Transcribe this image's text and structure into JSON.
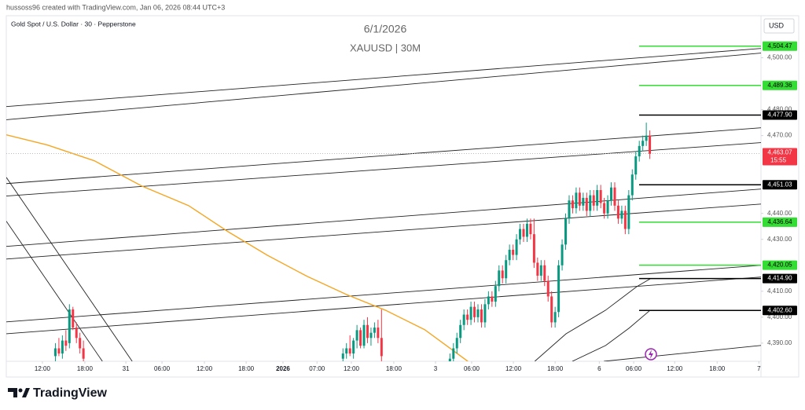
{
  "header": {
    "credit": "hussoss96 created with TradingView.com, Jan 06, 2026 08:44 UTC+3",
    "footer": "TradingView"
  },
  "chart_data": {
    "type": "candlestick",
    "symbol": "Gold Spot / U.S. Dollar · 30 · Pepperstone",
    "title": "6/1/2026",
    "subtitle": "XAUUSD | 30M",
    "currency": "USD",
    "xlim": [
      0,
      215.2
    ],
    "ylim": [
      4383,
      4515
    ],
    "xticks": [
      {
        "value": 10.3,
        "label": "12:00"
      },
      {
        "value": 22.4,
        "label": "18:00"
      },
      {
        "value": 34.1,
        "label": "31"
      },
      {
        "value": 44.4,
        "label": "06:00"
      },
      {
        "value": 56.5,
        "label": "12:00"
      },
      {
        "value": 68.4,
        "label": "18:00"
      },
      {
        "value": 78.9,
        "label": "2026"
      },
      {
        "value": 88.6,
        "label": "07:00"
      },
      {
        "value": 98.4,
        "label": "12:00"
      },
      {
        "value": 110.5,
        "label": "18:00"
      },
      {
        "value": 122.4,
        "label": "3"
      },
      {
        "value": 132.7,
        "label": "06:00"
      },
      {
        "value": 144.6,
        "label": "12:00"
      },
      {
        "value": 156.5,
        "label": "18:00"
      },
      {
        "value": 169.1,
        "label": "6"
      },
      {
        "value": 178.9,
        "label": "06:00"
      },
      {
        "value": 190.6,
        "label": "12:00"
      },
      {
        "value": 202.7,
        "label": "18:00"
      },
      {
        "value": 214.6,
        "label": "7"
      }
    ],
    "yticks": [
      {
        "value": 4390,
        "label": "4,390.00"
      },
      {
        "value": 4400,
        "label": "4,400.00"
      },
      {
        "value": 4410,
        "label": "4,410.00"
      },
      {
        "value": 4430,
        "label": "4,430.00"
      },
      {
        "value": 4440,
        "label": "4,440.00"
      },
      {
        "value": 4470,
        "label": "4,470.00"
      },
      {
        "value": 4480,
        "label": "4,480.00"
      },
      {
        "value": 4500,
        "label": "4,500.00"
      }
    ],
    "up_color": "#089981",
    "down_color": "#f23645",
    "candles": {
      "x": [
        14,
        15,
        16,
        17,
        18,
        19,
        20,
        21,
        22,
        96,
        97,
        98,
        99,
        100,
        101,
        102,
        103,
        104,
        105,
        106,
        107,
        126.5,
        127.5,
        128.5,
        129.5,
        130.5,
        131.5,
        132.5,
        133.5,
        134.5,
        135.5,
        136.5,
        137.5,
        138.5,
        139.5,
        140.5,
        141.5,
        142.5,
        143.5,
        144.5,
        145.5,
        146.5,
        147.5,
        148.5,
        149.5,
        150.5,
        151.5,
        152.5,
        153.5,
        154.5,
        155.5,
        156.5,
        157.5,
        158.5,
        159.5,
        160.5,
        161.5,
        162.5,
        163.5,
        164.5,
        165.5,
        166.5,
        167.5,
        168.5,
        169.5,
        170.5,
        171.5,
        172.5,
        173.5,
        174.5,
        175.5,
        176.5,
        177.5,
        178.5,
        179.5,
        180.5,
        181.5,
        182.5,
        183.5
      ],
      "open": [
        4385,
        4388,
        4386,
        4391,
        4390,
        4403,
        4396,
        4392,
        4388,
        4384,
        4386,
        4388,
        4386,
        4391,
        4395,
        4389,
        4397,
        4392,
        4394,
        4396,
        4392,
        4383,
        4384,
        4388,
        4392,
        4397,
        4401,
        4399,
        4404,
        4400,
        4403,
        4398,
        4405,
        4408,
        4406,
        4412,
        4418,
        4415,
        4422,
        4426,
        4424,
        4430,
        4434,
        4431,
        4436,
        4432,
        4421,
        4416,
        4420,
        4414,
        4408,
        4398,
        4402,
        4420,
        4428,
        4438,
        4445,
        4442,
        4448,
        4443,
        4446,
        4441,
        4447,
        4443,
        4449,
        4444,
        4440,
        4445,
        4450,
        4443,
        4438,
        4441,
        4434,
        4447,
        4455,
        4462,
        4466,
        4468,
        4470
      ],
      "high": [
        4390,
        4392,
        4393,
        4395,
        4405,
        4404,
        4398,
        4394,
        4391,
        4388,
        4390,
        4393,
        4392,
        4397,
        4396,
        4399,
        4400,
        4396,
        4398,
        4399,
        4403,
        4386,
        4390,
        4394,
        4399,
        4403,
        4403,
        4406,
        4406,
        4405,
        4405,
        4407,
        4410,
        4410,
        4414,
        4420,
        4420,
        4424,
        4428,
        4428,
        4432,
        4436,
        4436,
        4438,
        4438,
        4438,
        4423,
        4422,
        4422,
        4416,
        4410,
        4404,
        4422,
        4430,
        4440,
        4447,
        4447,
        4450,
        4450,
        4448,
        4448,
        4449,
        4449,
        4451,
        4451,
        4446,
        4447,
        4452,
        4452,
        4445,
        4443,
        4443,
        4449,
        4457,
        4464,
        4468,
        4470,
        4475,
        4472
      ],
      "low": [
        4383,
        4385,
        4384,
        4387,
        4388,
        4395,
        4390,
        4386,
        4383,
        4383,
        4384,
        4385,
        4384,
        4388,
        4388,
        4388,
        4390,
        4389,
        4392,
        4390,
        4383,
        4381,
        4382,
        4386,
        4390,
        4395,
        4397,
        4397,
        4398,
        4398,
        4396,
        4396,
        4403,
        4404,
        4404,
        4410,
        4413,
        4413,
        4420,
        4422,
        4422,
        4428,
        4429,
        4429,
        4430,
        4419,
        4414,
        4414,
        4412,
        4406,
        4396,
        4396,
        4400,
        4418,
        4426,
        4436,
        4440,
        4440,
        4441,
        4441,
        4439,
        4439,
        4441,
        4441,
        4442,
        4438,
        4438,
        4443,
        4441,
        4436,
        4436,
        4432,
        4432,
        4445,
        4453,
        4460,
        4464,
        4466,
        4461
      ],
      "close": [
        4388,
        4386,
        4391,
        4389,
        4403,
        4396,
        4392,
        4388,
        4384,
        4386,
        4388,
        4386,
        4391,
        4395,
        4389,
        4397,
        4392,
        4394,
        4396,
        4392,
        4385,
        4384,
        4388,
        4392,
        4397,
        4401,
        4399,
        4404,
        4400,
        4403,
        4398,
        4405,
        4408,
        4406,
        4412,
        4418,
        4415,
        4422,
        4426,
        4424,
        4430,
        4434,
        4431,
        4436,
        4432,
        4421,
        4416,
        4420,
        4414,
        4408,
        4398,
        4402,
        4420,
        4428,
        4438,
        4445,
        4442,
        4448,
        4443,
        4446,
        4441,
        4447,
        4443,
        4449,
        4444,
        4440,
        4445,
        4450,
        4443,
        4438,
        4441,
        4434,
        4447,
        4455,
        4462,
        4466,
        4468,
        4470,
        4463
      ]
    },
    "moving_average": {
      "color": "#f5a623",
      "x": [
        0,
        11.7,
        25.1,
        38.6,
        52.0,
        63.2,
        74.4,
        85.7,
        96.9,
        108.1,
        119.3,
        131.6
      ],
      "values": [
        4470.3,
        4466.4,
        4460.3,
        4450.6,
        4443.0,
        4433.0,
        4423.9,
        4415.8,
        4408.8,
        4402.7,
        4395.2,
        4383.0
      ]
    },
    "trendlines": [
      {
        "x": [
          0,
          215.2
        ],
        "values": [
          4481.2,
          4503.6
        ]
      },
      {
        "x": [
          0,
          215.2
        ],
        "values": [
          4476.1,
          4501.8
        ]
      },
      {
        "x": [
          0,
          215.2
        ],
        "values": [
          4451.5,
          4473.0
        ]
      },
      {
        "x": [
          0,
          215.2
        ],
        "values": [
          4446.7,
          4467.3
        ]
      },
      {
        "x": [
          0,
          215.2
        ],
        "values": [
          4427.3,
          4449.4
        ]
      },
      {
        "x": [
          0,
          215.2
        ],
        "values": [
          4422.4,
          4443.6
        ]
      },
      {
        "x": [
          0,
          215.2
        ],
        "values": [
          4398.2,
          4420.0
        ]
      },
      {
        "x": [
          0,
          215.2
        ],
        "values": [
          4393.6,
          4415.5
        ]
      },
      {
        "x": [
          170.4,
          215.2
        ],
        "values": [
          4383.0,
          4389.1
        ]
      },
      {
        "x": [
          0,
          35.9
        ],
        "values": [
          4453.9,
          4383.0
        ]
      },
      {
        "x": [
          0,
          27.4
        ],
        "values": [
          4437.0,
          4383.0
        ]
      },
      {
        "x": [
          150.7,
          159.6,
          170.9,
          179.8,
          183.6
        ],
        "values": [
          4383.0,
          4393.6,
          4402.7,
          4411.8,
          4414.8
        ]
      },
      {
        "x": [
          161.4,
          170.9,
          177.6,
          183.6
        ],
        "values": [
          4383.0,
          4389.1,
          4395.8,
          4402.7
        ]
      }
    ],
    "levels": [
      {
        "value": 4504.47,
        "label": "4,504.47",
        "color": "#33dd33"
      },
      {
        "value": 4489.36,
        "label": "4,489.36",
        "color": "#33dd33"
      },
      {
        "value": 4477.9,
        "label": "4,477.90",
        "color": "#000000"
      },
      {
        "value": 4451.03,
        "label": "4,451.03",
        "color": "#000000"
      },
      {
        "value": 4436.64,
        "label": "4,436.64",
        "color": "#33dd33"
      },
      {
        "value": 4420.05,
        "label": "4,420.05",
        "color": "#33dd33"
      },
      {
        "value": 4414.9,
        "label": "4,414.90",
        "color": "#000000"
      },
      {
        "value": 4402.6,
        "label": "4,402.60",
        "color": "#000000"
      }
    ],
    "last_price": {
      "value": 4463.07,
      "label": "4,463.07",
      "countdown": "15:55",
      "color": "#f23645"
    }
  }
}
